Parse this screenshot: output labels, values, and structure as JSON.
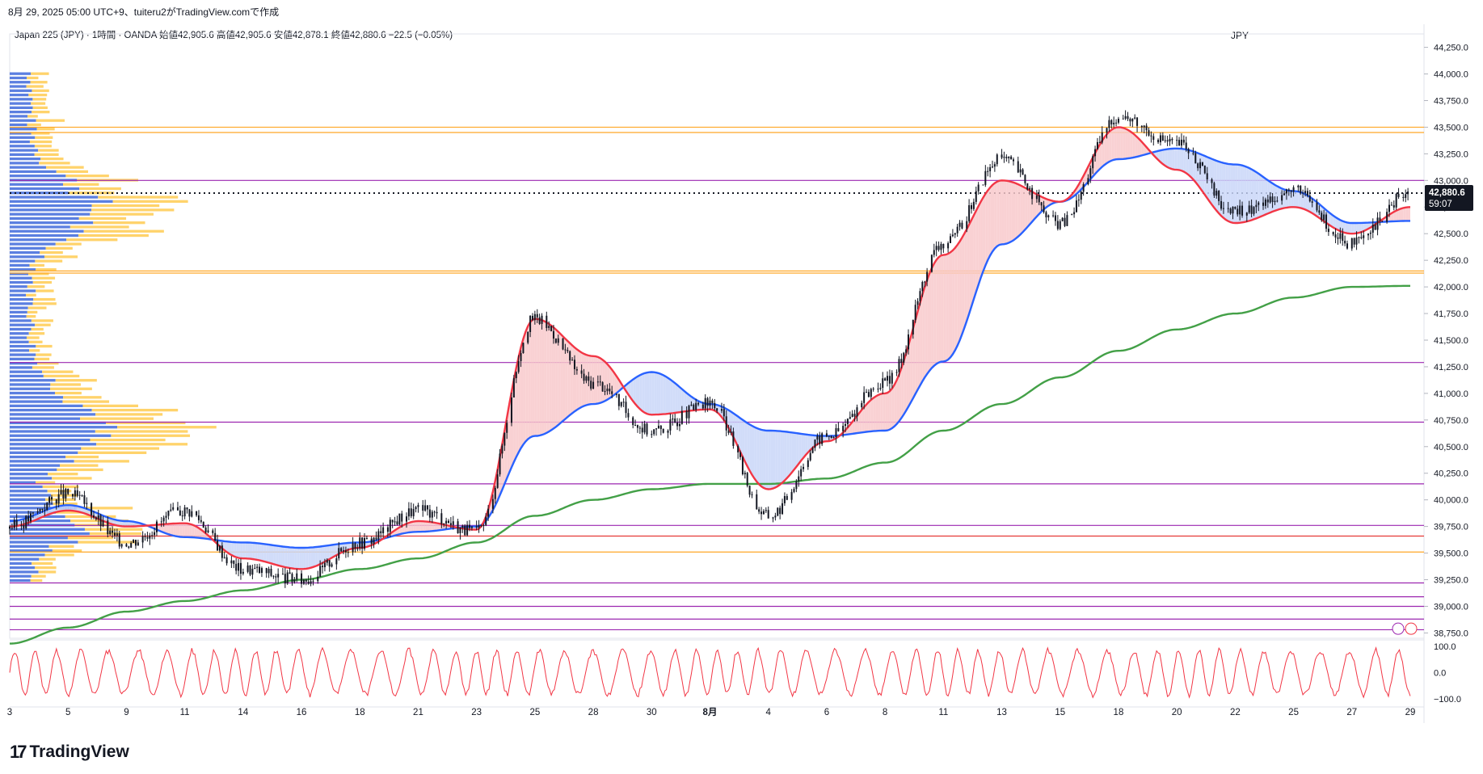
{
  "caption": "8月 29, 2025 05:00 UTC+9、tuiteru2がTradingView.comで作成",
  "symbol_line": "Japan 225 (JPY) · 1時間 · OANDA  始値42,905.6  高値42,905.6  安値42,878.1  終値42,880.6  −22.5 (−0.05%)",
  "currency": "JPY",
  "brand": {
    "mark": "17",
    "name": "TradingView"
  },
  "colors": {
    "candles": "#131722",
    "ema_fast": "#f23645",
    "ema_mid": "#2962ff",
    "ema_slow": "#43a047",
    "bull_fill": "#f8c9cb",
    "bear_fill": "#c9d6f8",
    "osc": "#f23645",
    "level_purple": "#9c27b0",
    "level_orange": "#ffa726",
    "vp_blue": "#5b7fe0",
    "vp_yellow": "#ffd36b"
  },
  "chart_data": {
    "type": "line",
    "title": "Japan 225 (JPY)",
    "interval": "1時間",
    "source": "OANDA",
    "ohlc": {
      "open": 42905.6,
      "high": 42905.6,
      "low": 42878.1,
      "close": 42880.6,
      "change": -22.5,
      "change_pct": -0.05
    },
    "last_price_label": "42,880.6",
    "countdown": "59:07",
    "ylim": [
      38700,
      44300
    ],
    "y_ticks": [
      "44,250.0",
      "44,000.0",
      "43,750.0",
      "43,500.0",
      "43,250.0",
      "43,000.0",
      "42,750.0",
      "42,500.0",
      "42,250.0",
      "42,000.0",
      "41,750.0",
      "41,500.0",
      "41,250.0",
      "41,000.0",
      "40,750.0",
      "40,500.0",
      "40,250.0",
      "40,000.0",
      "39,750.0",
      "39,500.0",
      "39,250.0",
      "39,000.0",
      "38,750.0"
    ],
    "x_ticks": [
      "3",
      "5",
      "9",
      "11",
      "14",
      "16",
      "18",
      "21",
      "23",
      "25",
      "28",
      "30",
      "8月",
      "4",
      "6",
      "8",
      "11",
      "13",
      "15",
      "18",
      "20",
      "22",
      "25",
      "27",
      "29"
    ],
    "x_values": [
      0,
      2,
      4,
      6,
      8,
      10,
      12,
      14,
      16,
      18,
      20,
      22,
      24,
      26,
      28,
      30,
      32,
      34,
      36,
      38,
      40,
      42,
      44,
      46,
      48
    ],
    "series": [
      {
        "key": "price",
        "values": [
          39750,
          40050,
          39600,
          39900,
          39350,
          39250,
          39600,
          39900,
          39700,
          41700,
          41100,
          40650,
          40900,
          39850,
          40600,
          41100,
          42400,
          43200,
          42600,
          43600,
          43350,
          42700,
          42900,
          42400,
          42880
        ]
      },
      {
        "key": "ema_fast",
        "values": [
          39750,
          39900,
          39750,
          39780,
          39450,
          39350,
          39550,
          39800,
          39720,
          41700,
          41350,
          40800,
          40850,
          40100,
          40550,
          41000,
          42300,
          43000,
          42800,
          43500,
          43100,
          42600,
          42750,
          42500,
          42750
        ]
      },
      {
        "key": "ema_mid",
        "values": [
          39800,
          39950,
          39800,
          39650,
          39600,
          39550,
          39600,
          39700,
          39750,
          40600,
          40900,
          41200,
          40900,
          40650,
          40600,
          40650,
          41300,
          42400,
          42800,
          43200,
          43300,
          43150,
          42900,
          42600,
          42620
        ]
      },
      {
        "key": "ema_slow",
        "values": [
          38650,
          38800,
          38950,
          39050,
          39150,
          39250,
          39350,
          39450,
          39600,
          39850,
          40000,
          40100,
          40150,
          40150,
          40200,
          40350,
          40650,
          40900,
          41150,
          41400,
          41600,
          41750,
          41900,
          42000,
          42010
        ]
      }
    ],
    "horizontal_levels": [
      {
        "price": 43500,
        "color": "orange"
      },
      {
        "price": 43450,
        "color": "orange"
      },
      {
        "price": 43000,
        "color": "purple"
      },
      {
        "price": 42150,
        "color": "orange"
      },
      {
        "price": 42130,
        "color": "orange"
      },
      {
        "price": 41290,
        "color": "purple"
      },
      {
        "price": 40730,
        "color": "purple"
      },
      {
        "price": 40150,
        "color": "purple"
      },
      {
        "price": 39760,
        "color": "purple"
      },
      {
        "price": 39660,
        "color": "red"
      },
      {
        "price": 39510,
        "color": "orange"
      },
      {
        "price": 39220,
        "color": "purple"
      },
      {
        "price": 39090,
        "color": "purple"
      },
      {
        "price": 39000,
        "color": "purple"
      },
      {
        "price": 38880,
        "color": "purple"
      },
      {
        "price": 38780,
        "color": "purple"
      }
    ],
    "last_price": 42880.6,
    "oscillator": {
      "ylim": [
        -100,
        100
      ],
      "ticks": [
        "100.0",
        "0.0",
        "−100.0"
      ]
    }
  }
}
